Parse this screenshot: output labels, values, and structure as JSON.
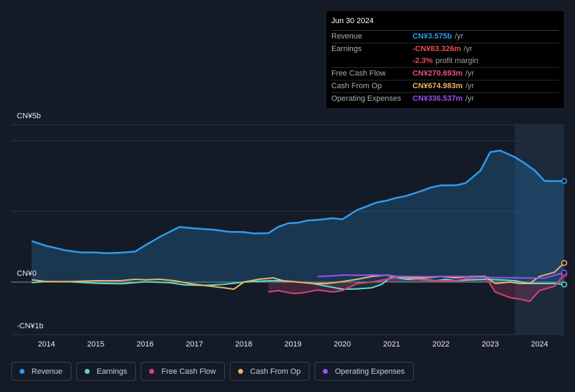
{
  "tooltip": {
    "date": "Jun 30 2024",
    "rows": [
      {
        "label": "Revenue",
        "value": "CN¥3.575b",
        "unit": "/yr",
        "color": "#2e9cf0"
      },
      {
        "label": "Earnings",
        "value": "-CN¥83.326m",
        "unit": "/yr",
        "color": "#e84f4f"
      },
      {
        "label": "",
        "value": "-2.3%",
        "unit": "profit margin",
        "color": "#e84f4f"
      },
      {
        "label": "Free Cash Flow",
        "value": "CN¥270.693m",
        "unit": "/yr",
        "color": "#e3508f"
      },
      {
        "label": "Cash From Op",
        "value": "CN¥674.983m",
        "unit": "/yr",
        "color": "#e8b46a"
      },
      {
        "label": "Operating Expenses",
        "value": "CN¥336.537m",
        "unit": "/yr",
        "color": "#9a51f0"
      }
    ]
  },
  "axis": {
    "y_top_label": "CN¥5b",
    "y_zero_label": "CN¥0",
    "y_bottom_label": "-CN¥1b"
  },
  "legend": [
    {
      "label": "Revenue",
      "color": "#2e9cf0"
    },
    {
      "label": "Earnings",
      "color": "#5fdcc8"
    },
    {
      "label": "Free Cash Flow",
      "color": "#d9437d"
    },
    {
      "label": "Cash From Op",
      "color": "#e8b46a"
    },
    {
      "label": "Operating Expenses",
      "color": "#9a51f0"
    }
  ],
  "chart_data": {
    "type": "line",
    "title": "",
    "xlabel": "",
    "ylabel": "CN¥",
    "ylim": [
      -1.0,
      5.0
    ],
    "units": "CN¥ billions",
    "x_ticks": [
      "2014",
      "2015",
      "2016",
      "2017",
      "2018",
      "2019",
      "2020",
      "2021",
      "2022",
      "2023",
      "2024"
    ],
    "x_range": [
      2013.8,
      2024.5
    ],
    "highlight_from": 2023.5,
    "series": [
      {
        "name": "Revenue",
        "color": "#2e9cf0",
        "x": [
          2013.7,
          2014.0,
          2014.4,
          2014.7,
          2015.0,
          2015.2,
          2015.5,
          2015.8,
          2016.0,
          2016.3,
          2016.5,
          2016.7,
          2017.0,
          2017.4,
          2017.7,
          2018.0,
          2018.2,
          2018.5,
          2018.7,
          2018.9,
          2019.1,
          2019.3,
          2019.5,
          2019.8,
          2020.0,
          2020.3,
          2020.5,
          2020.7,
          2020.9,
          2021.1,
          2021.3,
          2021.6,
          2021.8,
          2022.0,
          2022.3,
          2022.5,
          2022.8,
          2023.0,
          2023.2,
          2023.5,
          2023.7,
          2023.9,
          2024.1,
          2024.3,
          2024.5
        ],
        "values": [
          1.45,
          1.28,
          1.12,
          1.05,
          1.05,
          1.02,
          1.04,
          1.08,
          1.3,
          1.6,
          1.78,
          1.95,
          1.9,
          1.85,
          1.78,
          1.77,
          1.72,
          1.73,
          1.95,
          2.08,
          2.1,
          2.18,
          2.2,
          2.26,
          2.22,
          2.55,
          2.68,
          2.82,
          2.88,
          2.98,
          3.05,
          3.22,
          3.35,
          3.42,
          3.42,
          3.5,
          3.94,
          4.6,
          4.65,
          4.42,
          4.2,
          3.95,
          3.58,
          3.57,
          3.575
        ]
      },
      {
        "name": "Earnings",
        "color": "#5fdcc8",
        "x": [
          2013.7,
          2014.0,
          2014.5,
          2015.0,
          2015.5,
          2016.0,
          2016.5,
          2016.8,
          2017.2,
          2017.6,
          2018.0,
          2018.4,
          2018.7,
          2019.0,
          2019.4,
          2019.7,
          2020.0,
          2020.3,
          2020.6,
          2020.8,
          2021.0,
          2021.3,
          2021.6,
          2021.9,
          2022.1,
          2022.3,
          2022.6,
          2022.9,
          2023.2,
          2023.5,
          2023.8,
          2024.0,
          2024.3,
          2024.5
        ],
        "values": [
          -0.02,
          0.02,
          0.01,
          -0.04,
          -0.06,
          0.01,
          -0.02,
          -0.1,
          -0.12,
          -0.08,
          0.0,
          0.04,
          0.05,
          0.02,
          -0.05,
          -0.15,
          -0.25,
          -0.24,
          -0.2,
          -0.08,
          0.2,
          0.1,
          0.1,
          0.05,
          0.1,
          0.05,
          0.08,
          0.1,
          0.08,
          0.05,
          -0.05,
          -0.05,
          -0.05,
          -0.083
        ]
      },
      {
        "name": "Free Cash Flow",
        "color": "#d9437d",
        "x": [
          2018.5,
          2018.7,
          2019.0,
          2019.2,
          2019.5,
          2019.8,
          2020.0,
          2020.3,
          2020.6,
          2020.9,
          2021.2,
          2021.5,
          2021.8,
          2022.0,
          2022.3,
          2022.6,
          2022.9,
          2023.1,
          2023.4,
          2023.6,
          2023.8,
          2024.0,
          2024.3,
          2024.5
        ],
        "values": [
          -0.35,
          -0.3,
          -0.4,
          -0.38,
          -0.28,
          -0.35,
          -0.3,
          -0.05,
          0.0,
          0.1,
          0.2,
          0.1,
          0.05,
          0.05,
          0.05,
          0.15,
          0.2,
          -0.35,
          -0.55,
          -0.6,
          -0.68,
          -0.3,
          -0.15,
          0.271
        ]
      },
      {
        "name": "Cash From Op",
        "color": "#e8b46a",
        "x": [
          2013.7,
          2014.0,
          2014.5,
          2015.0,
          2015.5,
          2015.8,
          2016.0,
          2016.3,
          2016.6,
          2016.9,
          2017.2,
          2017.6,
          2017.8,
          2018.0,
          2018.3,
          2018.6,
          2018.8,
          2019.0,
          2019.4,
          2019.7,
          2020.0,
          2020.3,
          2020.6,
          2020.9,
          2021.1,
          2021.4,
          2021.7,
          2022.0,
          2022.3,
          2022.6,
          2022.9,
          2023.1,
          2023.4,
          2023.6,
          2023.8,
          2024.0,
          2024.3,
          2024.5
        ],
        "values": [
          0.08,
          0.02,
          0.02,
          0.05,
          0.05,
          0.1,
          0.08,
          0.1,
          0.05,
          -0.05,
          -0.12,
          -0.2,
          -0.25,
          0.0,
          0.1,
          0.15,
          0.05,
          0.02,
          -0.05,
          -0.05,
          0.02,
          0.1,
          0.2,
          0.25,
          0.2,
          0.15,
          0.15,
          0.2,
          0.15,
          0.2,
          0.2,
          -0.05,
          0.0,
          -0.05,
          -0.05,
          0.2,
          0.35,
          0.675
        ]
      },
      {
        "name": "Operating Expenses",
        "color": "#9a51f0",
        "x": [
          2019.5,
          2019.8,
          2020.0,
          2020.3,
          2020.6,
          2020.9,
          2021.1,
          2021.4,
          2021.7,
          2022.0,
          2022.4,
          2022.8,
          2023.1,
          2023.5,
          2023.8,
          2024.1,
          2024.5
        ],
        "values": [
          0.2,
          0.22,
          0.25,
          0.24,
          0.25,
          0.24,
          0.2,
          0.2,
          0.19,
          0.2,
          0.2,
          0.18,
          0.16,
          0.15,
          0.14,
          0.14,
          0.337
        ]
      }
    ]
  }
}
